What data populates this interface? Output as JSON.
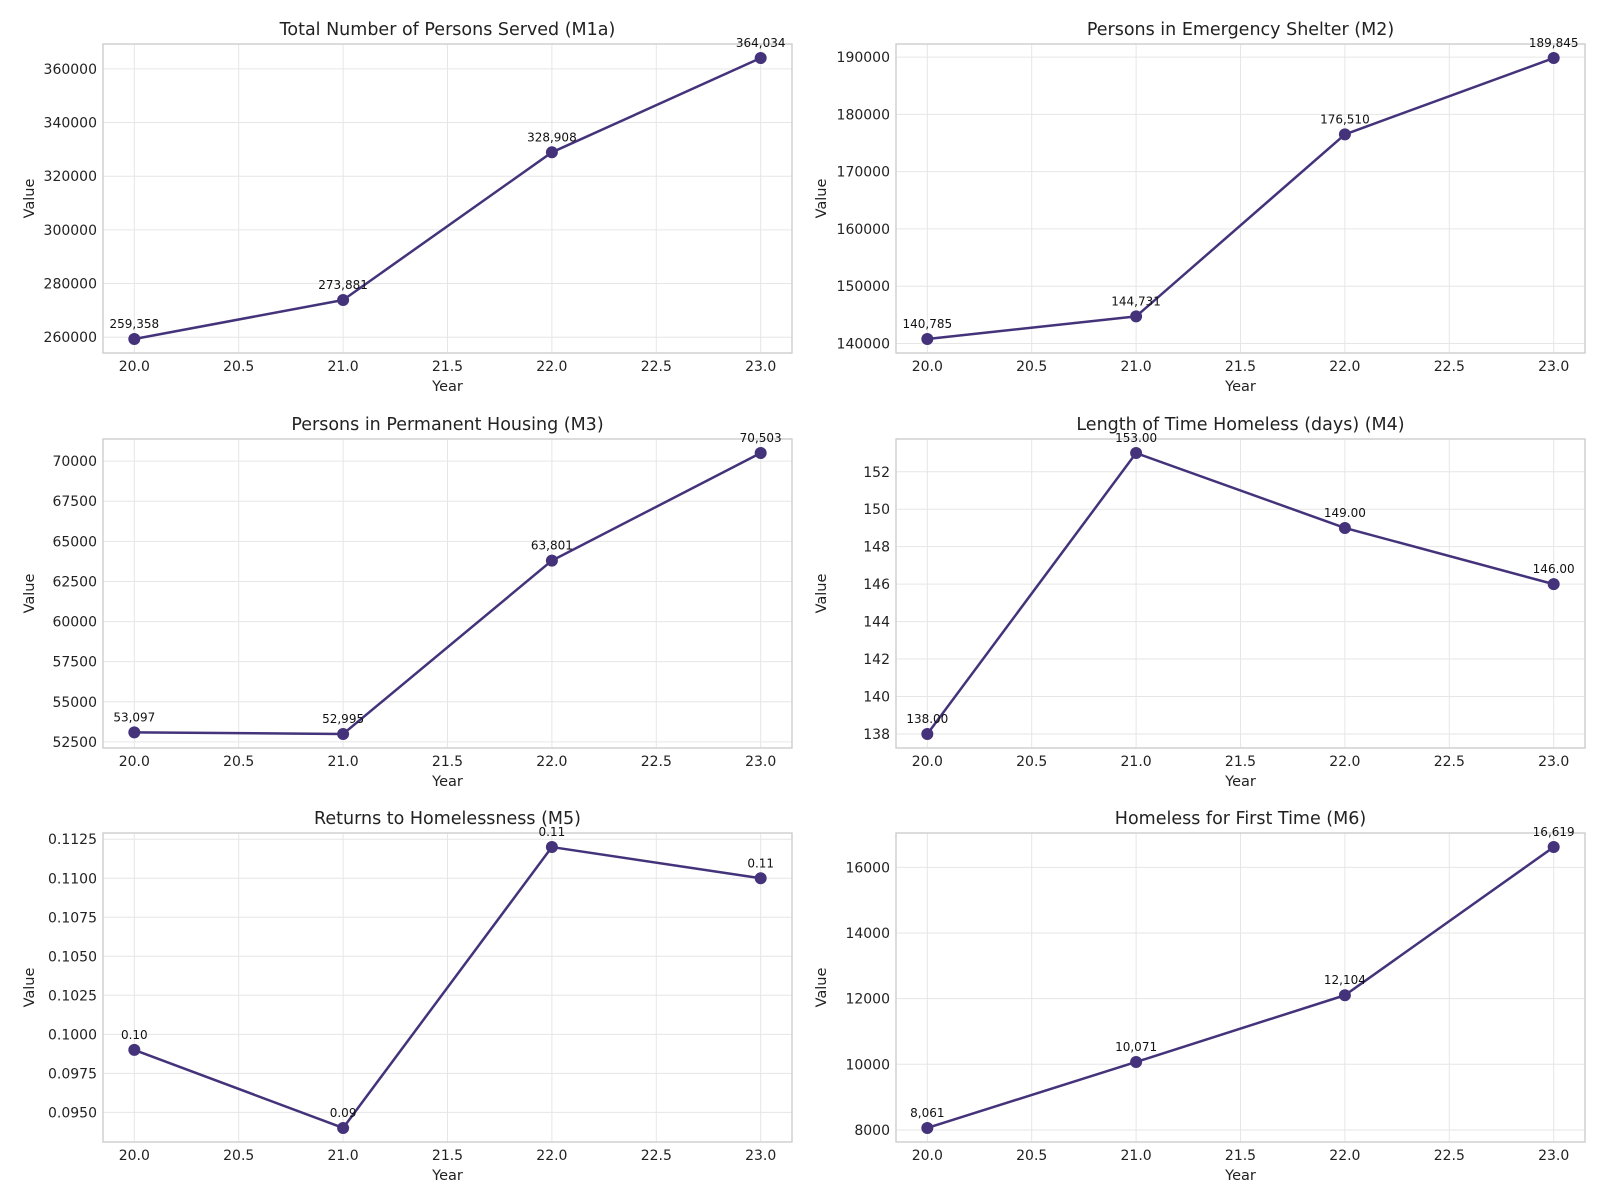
{
  "chart_data": [
    {
      "type": "line",
      "title": "Total Number of Persons Served (M1a)",
      "xlabel": "Year",
      "ylabel": "Value",
      "x": [
        20.0,
        21.0,
        22.0,
        23.0
      ],
      "series": [
        {
          "values": [
            259358,
            273881,
            328908,
            364034
          ]
        }
      ],
      "data_labels": [
        "259,358",
        "273,881",
        "328,908",
        "364,034"
      ],
      "xlim": [
        19.85,
        23.15
      ],
      "ylim": [
        254125,
        369267
      ],
      "xticks": [
        20.0,
        20.5,
        21.0,
        21.5,
        22.0,
        22.5,
        23.0
      ],
      "xtick_labels": [
        "20.0",
        "20.5",
        "21.0",
        "21.5",
        "22.0",
        "22.5",
        "23.0"
      ],
      "yticks": [
        260000,
        280000,
        300000,
        320000,
        340000,
        360000
      ],
      "ytick_labels": [
        "260000",
        "280000",
        "300000",
        "320000",
        "340000",
        "360000"
      ],
      "grid": true,
      "color": "#44337a"
    },
    {
      "type": "line",
      "title": "Persons in Emergency Shelter (M2)",
      "xlabel": "Year",
      "ylabel": "Value",
      "x": [
        20.0,
        21.0,
        22.0,
        23.0
      ],
      "series": [
        {
          "values": [
            140785,
            144731,
            176510,
            189845
          ]
        }
      ],
      "data_labels": [
        "140,785",
        "144,731",
        "176,510",
        "189,845"
      ],
      "xlim": [
        19.85,
        23.15
      ],
      "ylim": [
        138333,
        192298
      ],
      "xticks": [
        20.0,
        20.5,
        21.0,
        21.5,
        22.0,
        22.5,
        23.0
      ],
      "xtick_labels": [
        "20.0",
        "20.5",
        "21.0",
        "21.5",
        "22.0",
        "22.5",
        "23.0"
      ],
      "yticks": [
        140000,
        150000,
        160000,
        170000,
        180000,
        190000
      ],
      "ytick_labels": [
        "140000",
        "150000",
        "160000",
        "170000",
        "180000",
        "190000"
      ],
      "grid": true,
      "color": "#44337a"
    },
    {
      "type": "line",
      "title": "Persons in Permanent Housing (M3)",
      "xlabel": "Year",
      "ylabel": "Value",
      "x": [
        20.0,
        21.0,
        22.0,
        23.0
      ],
      "series": [
        {
          "values": [
            53097,
            52995,
            63801,
            70503
          ]
        }
      ],
      "data_labels": [
        "53,097",
        "52,995",
        "63,801",
        "70,503"
      ],
      "xlim": [
        19.85,
        23.15
      ],
      "ylim": [
        52120,
        71378
      ],
      "xticks": [
        20.0,
        20.5,
        21.0,
        21.5,
        22.0,
        22.5,
        23.0
      ],
      "xtick_labels": [
        "20.0",
        "20.5",
        "21.0",
        "21.5",
        "22.0",
        "22.5",
        "23.0"
      ],
      "yticks": [
        52500,
        55000,
        57500,
        60000,
        62500,
        65000,
        67500,
        70000
      ],
      "ytick_labels": [
        "52500",
        "55000",
        "57500",
        "60000",
        "62500",
        "65000",
        "67500",
        "70000"
      ],
      "grid": true,
      "color": "#44337a"
    },
    {
      "type": "line",
      "title": "Length of Time Homeless (days) (M4)",
      "xlabel": "Year",
      "ylabel": "Value",
      "x": [
        20.0,
        21.0,
        22.0,
        23.0
      ],
      "series": [
        {
          "values": [
            138.0,
            153.0,
            149.0,
            146.0
          ]
        }
      ],
      "data_labels": [
        "138.00",
        "153.00",
        "149.00",
        "146.00"
      ],
      "xlim": [
        19.85,
        23.15
      ],
      "ylim": [
        137.25,
        153.75
      ],
      "xticks": [
        20.0,
        20.5,
        21.0,
        21.5,
        22.0,
        22.5,
        23.0
      ],
      "xtick_labels": [
        "20.0",
        "20.5",
        "21.0",
        "21.5",
        "22.0",
        "22.5",
        "23.0"
      ],
      "yticks": [
        138,
        140,
        142,
        144,
        146,
        148,
        150,
        152
      ],
      "ytick_labels": [
        "138",
        "140",
        "142",
        "144",
        "146",
        "148",
        "150",
        "152"
      ],
      "grid": true,
      "color": "#44337a"
    },
    {
      "type": "line",
      "title": "Returns to Homelessness (M5)",
      "xlabel": "Year",
      "ylabel": "Value",
      "x": [
        20.0,
        21.0,
        22.0,
        23.0
      ],
      "series": [
        {
          "values": [
            0.099,
            0.094,
            0.112,
            0.11
          ]
        }
      ],
      "data_labels": [
        "0.10",
        "0.09",
        "0.11",
        "0.11"
      ],
      "xlim": [
        19.85,
        23.15
      ],
      "ylim": [
        0.0931,
        0.1129
      ],
      "xticks": [
        20.0,
        20.5,
        21.0,
        21.5,
        22.0,
        22.5,
        23.0
      ],
      "xtick_labels": [
        "20.0",
        "20.5",
        "21.0",
        "21.5",
        "22.0",
        "22.5",
        "23.0"
      ],
      "yticks": [
        0.095,
        0.0975,
        0.1,
        0.1025,
        0.105,
        0.1075,
        0.11,
        0.1125
      ],
      "ytick_labels": [
        "0.0950",
        "0.0975",
        "0.1000",
        "0.1025",
        "0.1050",
        "0.1075",
        "0.1100",
        "0.1125"
      ],
      "grid": true,
      "color": "#44337a"
    },
    {
      "type": "line",
      "title": "Homeless for First Time (M6)",
      "xlabel": "Year",
      "ylabel": "Value",
      "x": [
        20.0,
        21.0,
        22.0,
        23.0
      ],
      "series": [
        {
          "values": [
            8061,
            10071,
            12104,
            16619
          ]
        }
      ],
      "data_labels": [
        "8,061",
        "10,071",
        "12,104",
        "16,619"
      ],
      "xlim": [
        19.85,
        23.15
      ],
      "ylim": [
        7633,
        17047
      ],
      "xticks": [
        20.0,
        20.5,
        21.0,
        21.5,
        22.0,
        22.5,
        23.0
      ],
      "xtick_labels": [
        "20.0",
        "20.5",
        "21.0",
        "21.5",
        "22.0",
        "22.5",
        "23.0"
      ],
      "yticks": [
        8000,
        10000,
        12000,
        14000,
        16000
      ],
      "ytick_labels": [
        "8000",
        "10000",
        "12000",
        "14000",
        "16000"
      ],
      "grid": true,
      "color": "#44337a"
    }
  ]
}
